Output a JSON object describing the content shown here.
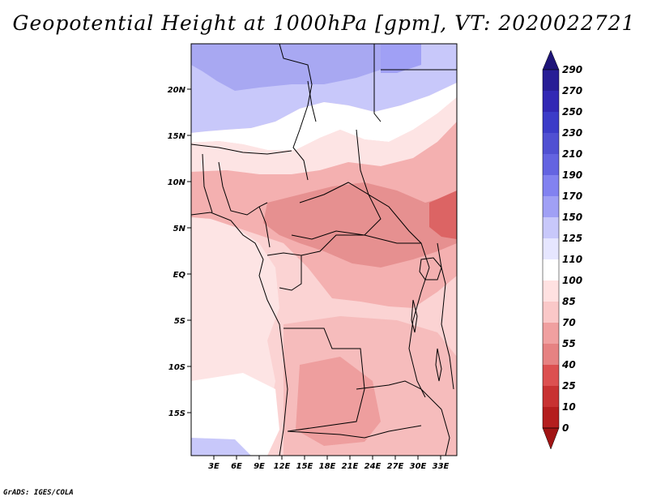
{
  "title": "Geopotential Height at 1000hPa [gpm], VT: 2020022721",
  "footer": "GrADS: IGES/COLA",
  "map": {
    "lat_labels": [
      "20N",
      "15N",
      "10N",
      "5N",
      "EQ",
      "5S",
      "10S",
      "15S"
    ],
    "lon_labels": [
      "3E",
      "6E",
      "9E",
      "12E",
      "15E",
      "18E",
      "21E",
      "24E",
      "27E",
      "30E",
      "33E"
    ]
  },
  "colorbar": {
    "labels": [
      "290",
      "270",
      "250",
      "230",
      "210",
      "190",
      "170",
      "150",
      "125",
      "110",
      "100",
      "85",
      "70",
      "55",
      "40",
      "25",
      "10",
      "0"
    ],
    "colors": {
      "c290": "#1e1478",
      "c270": "#281e96",
      "c250": "#3228b4",
      "c230": "#3c3cc8",
      "c210": "#5050d2",
      "c190": "#6464e1",
      "c170": "#8282f0",
      "c150": "#a0a0f5",
      "c125": "#c8c8fa",
      "c110": "#e6e6ff",
      "c100": "#ffffff",
      "c85": "#ffe1e1",
      "c70": "#fac8c8",
      "c55": "#f0a0a0",
      "c40": "#e68282",
      "c25": "#dc5050",
      "c10": "#c83232",
      "c0": "#b41e1e",
      "cneg": "#a01414"
    }
  }
}
